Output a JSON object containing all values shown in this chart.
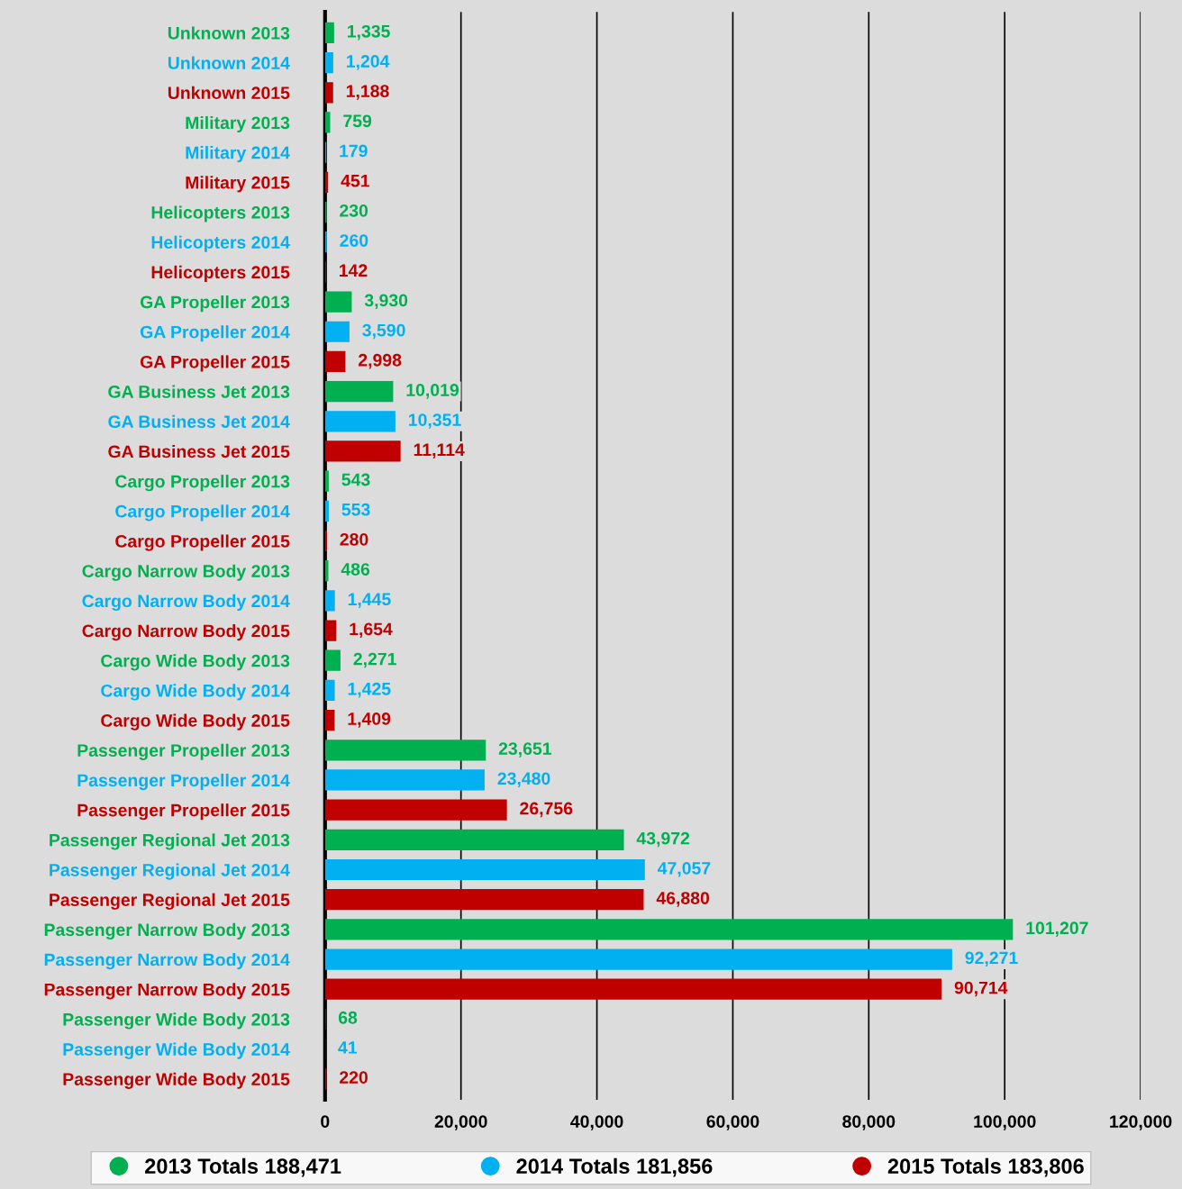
{
  "chart_data": {
    "type": "bar",
    "orientation": "horizontal",
    "categories": [
      "Unknown 2013",
      "Unknown 2014",
      "Unknown 2015",
      "Military 2013",
      "Military 2014",
      "Military 2015",
      "Helicopters 2013",
      "Helicopters 2014",
      "Helicopters 2015",
      "GA Propeller 2013",
      "GA Propeller 2014",
      "GA Propeller 2015",
      "GA Business Jet 2013",
      "GA Business Jet 2014",
      "GA Business Jet 2015",
      "Cargo Propeller 2013",
      "Cargo Propeller 2014",
      "Cargo Propeller 2015",
      "Cargo Narrow Body 2013",
      "Cargo Narrow Body 2014",
      "Cargo Narrow Body 2015",
      "Cargo Wide Body 2013",
      "Cargo Wide Body 2014",
      "Cargo Wide Body 2015",
      "Passenger Propeller 2013",
      "Passenger Propeller 2014",
      "Passenger Propeller 2015",
      "Passenger Regional Jet 2013",
      "Passenger Regional Jet 2014",
      "Passenger Regional Jet 2015",
      "Passenger Narrow Body 2013",
      "Passenger Narrow Body 2014",
      "Passenger Narrow Body 2015",
      "Passenger Wide Body 2013",
      "Passenger Wide Body 2014",
      "Passenger Wide Body 2015"
    ],
    "series": [
      {
        "name": "2013 Totals 188,471",
        "color": "#00b050",
        "values": [
          1335,
          null,
          null,
          759,
          null,
          null,
          230,
          null,
          null,
          3930,
          null,
          null,
          10019,
          null,
          null,
          543,
          null,
          null,
          486,
          null,
          null,
          2271,
          null,
          null,
          23651,
          null,
          null,
          43972,
          null,
          null,
          101207,
          null,
          null,
          68,
          null,
          null
        ],
        "value_labels": [
          "1,335",
          null,
          null,
          "759",
          null,
          null,
          "230",
          null,
          null,
          "3,930",
          null,
          null,
          "10,019",
          null,
          null,
          "543",
          null,
          null,
          "486",
          null,
          null,
          "2,271",
          null,
          null,
          "23,651",
          null,
          null,
          "43,972",
          null,
          null,
          "101,207",
          null,
          null,
          "68",
          null,
          null
        ]
      },
      {
        "name": "2014 Totals 181,856",
        "color": "#00b0f0",
        "values": [
          null,
          1204,
          null,
          null,
          179,
          null,
          null,
          260,
          null,
          null,
          3590,
          null,
          null,
          10351,
          null,
          null,
          553,
          null,
          null,
          1445,
          null,
          null,
          1425,
          null,
          null,
          23480,
          null,
          null,
          47057,
          null,
          null,
          92271,
          null,
          null,
          41,
          null
        ],
        "value_labels": [
          null,
          "1,204",
          null,
          null,
          "179",
          null,
          null,
          "260",
          null,
          null,
          "3,590",
          null,
          null,
          "10,351",
          null,
          null,
          "553",
          null,
          null,
          "1,445",
          null,
          null,
          "1,425",
          null,
          null,
          "23,480",
          null,
          null,
          "47,057",
          null,
          null,
          "92,271",
          null,
          null,
          "41",
          null
        ]
      },
      {
        "name": "2015 Totals 183,806",
        "color": "#c00000",
        "values": [
          null,
          null,
          1188,
          null,
          null,
          451,
          null,
          null,
          142,
          null,
          null,
          2998,
          null,
          null,
          11114,
          null,
          null,
          280,
          null,
          null,
          1654,
          null,
          null,
          1409,
          null,
          null,
          26756,
          null,
          null,
          46880,
          null,
          null,
          90714,
          null,
          null,
          220
        ],
        "value_labels": [
          null,
          null,
          "1,188",
          null,
          null,
          "451",
          null,
          null,
          "142",
          null,
          null,
          "2,998",
          null,
          null,
          "11,114",
          null,
          null,
          "280",
          null,
          null,
          "1,654",
          null,
          null,
          "1,409",
          null,
          null,
          "26,756",
          null,
          null,
          "46,880",
          null,
          null,
          "90,714",
          null,
          null,
          "220"
        ]
      }
    ],
    "xlim": [
      0,
      120000
    ],
    "xticks": [
      {
        "value": 0,
        "label": "0"
      },
      {
        "value": 20000,
        "label": "20,000"
      },
      {
        "value": 40000,
        "label": "40,000"
      },
      {
        "value": 60000,
        "label": "60,000"
      },
      {
        "value": 80000,
        "label": "80,000"
      },
      {
        "value": 100000,
        "label": "100,000"
      },
      {
        "value": 120000,
        "label": "120,000"
      }
    ],
    "grid": "x",
    "legend": "bottom"
  }
}
